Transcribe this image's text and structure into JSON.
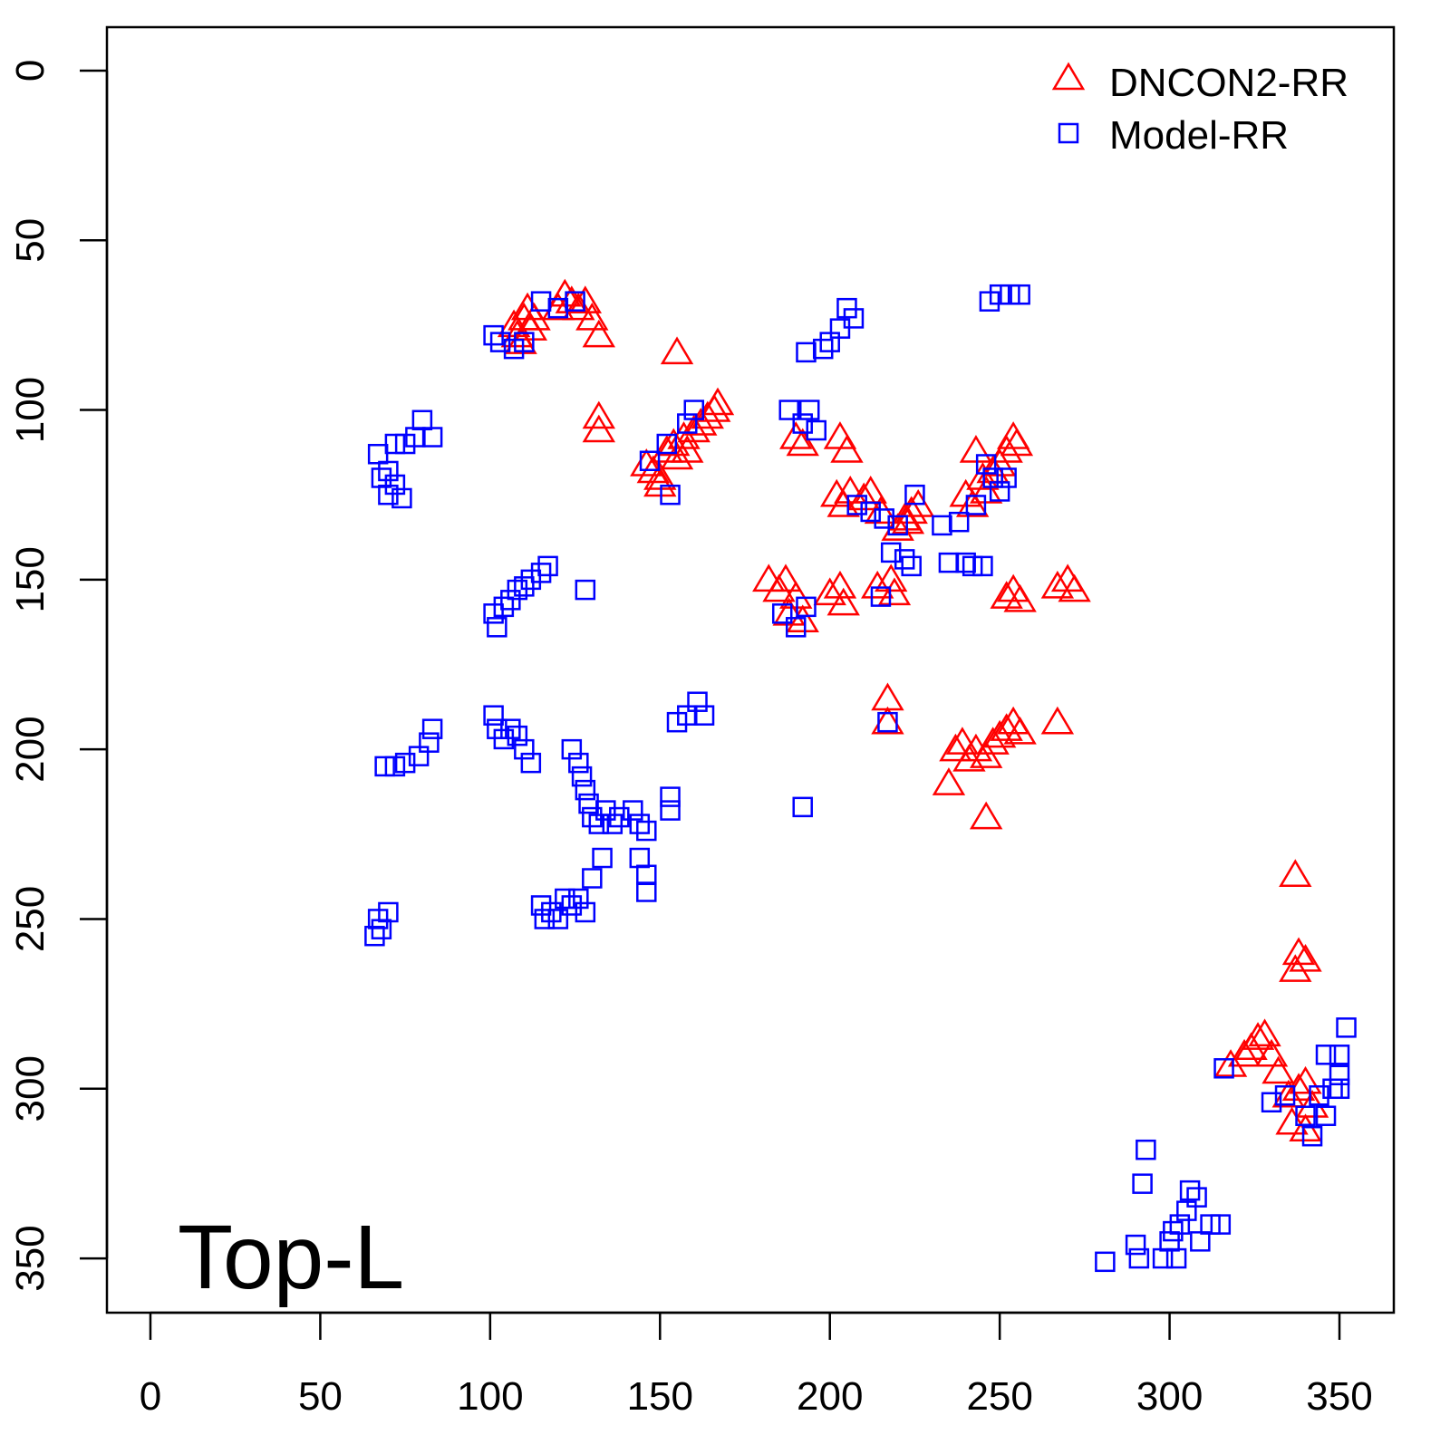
{
  "chart_data": {
    "type": "scatter",
    "title": "",
    "annotation": "Top-L",
    "xlabel": "",
    "ylabel": "",
    "xlim": [
      -12.8,
      366
    ],
    "ylim": [
      -12.8,
      366
    ],
    "y_inverted": true,
    "xticks": [
      0,
      50,
      100,
      150,
      200,
      250,
      300,
      350
    ],
    "yticks": [
      0,
      50,
      100,
      150,
      200,
      250,
      300,
      350
    ],
    "legend_position": "top-right",
    "series": [
      {
        "name": "DNCON2-RR",
        "marker": "triangle",
        "color": "#ff0000",
        "points": [
          [
            107,
            75
          ],
          [
            108,
            78
          ],
          [
            110,
            73
          ],
          [
            111,
            70
          ],
          [
            112,
            76
          ],
          [
            109,
            80
          ],
          [
            113,
            73
          ],
          [
            120,
            70
          ],
          [
            122,
            66
          ],
          [
            124,
            68
          ],
          [
            126,
            70
          ],
          [
            128,
            68
          ],
          [
            130,
            73
          ],
          [
            132,
            78
          ],
          [
            155,
            83
          ],
          [
            132,
            102
          ],
          [
            132,
            106
          ],
          [
            146,
            116
          ],
          [
            148,
            118
          ],
          [
            150,
            120
          ],
          [
            150,
            122
          ],
          [
            152,
            112
          ],
          [
            154,
            110
          ],
          [
            155,
            114
          ],
          [
            157,
            108
          ],
          [
            158,
            112
          ],
          [
            160,
            106
          ],
          [
            162,
            104
          ],
          [
            164,
            102
          ],
          [
            166,
            100
          ],
          [
            167,
            98
          ],
          [
            190,
            108
          ],
          [
            192,
            110
          ],
          [
            203,
            108
          ],
          [
            205,
            112
          ],
          [
            202,
            125
          ],
          [
            204,
            128
          ],
          [
            206,
            124
          ],
          [
            210,
            126
          ],
          [
            212,
            124
          ],
          [
            215,
            130
          ],
          [
            220,
            135
          ],
          [
            222,
            132
          ],
          [
            223,
            133
          ],
          [
            224,
            130
          ],
          [
            226,
            128
          ],
          [
            240,
            125
          ],
          [
            242,
            128
          ],
          [
            243,
            112
          ],
          [
            245,
            120
          ],
          [
            246,
            124
          ],
          [
            248,
            118
          ],
          [
            250,
            116
          ],
          [
            252,
            112
          ],
          [
            254,
            108
          ],
          [
            255,
            110
          ],
          [
            182,
            150
          ],
          [
            185,
            153
          ],
          [
            187,
            150
          ],
          [
            190,
            155
          ],
          [
            188,
            160
          ],
          [
            192,
            162
          ],
          [
            200,
            154
          ],
          [
            203,
            152
          ],
          [
            204,
            157
          ],
          [
            214,
            152
          ],
          [
            218,
            150
          ],
          [
            219,
            154
          ],
          [
            252,
            155
          ],
          [
            254,
            153
          ],
          [
            256,
            156
          ],
          [
            267,
            152
          ],
          [
            270,
            150
          ],
          [
            272,
            153
          ],
          [
            217,
            185
          ],
          [
            217,
            192
          ],
          [
            235,
            210
          ],
          [
            237,
            200
          ],
          [
            239,
            198
          ],
          [
            241,
            203
          ],
          [
            243,
            200
          ],
          [
            246,
            202
          ],
          [
            248,
            198
          ],
          [
            250,
            196
          ],
          [
            252,
            194
          ],
          [
            254,
            192
          ],
          [
            256,
            195
          ],
          [
            267,
            192
          ],
          [
            246,
            220
          ],
          [
            337,
            237
          ],
          [
            338,
            260
          ],
          [
            340,
            262
          ],
          [
            337,
            265
          ],
          [
            318,
            293
          ],
          [
            322,
            290
          ],
          [
            324,
            288
          ],
          [
            326,
            285
          ],
          [
            328,
            284
          ],
          [
            330,
            290
          ],
          [
            332,
            295
          ],
          [
            335,
            302
          ],
          [
            338,
            300
          ],
          [
            340,
            298
          ],
          [
            342,
            305
          ],
          [
            336,
            310
          ],
          [
            340,
            312
          ]
        ]
      },
      {
        "name": "Model-RR",
        "marker": "square",
        "color": "#0000ff",
        "points": [
          [
            67,
            113
          ],
          [
            68,
            120
          ],
          [
            70,
            125
          ],
          [
            72,
            122
          ],
          [
            74,
            126
          ],
          [
            72,
            110
          ],
          [
            75,
            110
          ],
          [
            78,
            108
          ],
          [
            80,
            103
          ],
          [
            83,
            108
          ],
          [
            70,
            118
          ],
          [
            101,
            78
          ],
          [
            103,
            80
          ],
          [
            107,
            82
          ],
          [
            110,
            80
          ],
          [
            115,
            68
          ],
          [
            120,
            70
          ],
          [
            125,
            68
          ],
          [
            101,
            160
          ],
          [
            102,
            164
          ],
          [
            104,
            158
          ],
          [
            106,
            156
          ],
          [
            108,
            153
          ],
          [
            110,
            152
          ],
          [
            112,
            150
          ],
          [
            115,
            148
          ],
          [
            117,
            146
          ],
          [
            128,
            153
          ],
          [
            101,
            190
          ],
          [
            102,
            194
          ],
          [
            104,
            197
          ],
          [
            106,
            194
          ],
          [
            108,
            196
          ],
          [
            110,
            200
          ],
          [
            112,
            204
          ],
          [
            69,
            205
          ],
          [
            72,
            205
          ],
          [
            75,
            204
          ],
          [
            79,
            202
          ],
          [
            82,
            198
          ],
          [
            83,
            194
          ],
          [
            67,
            250
          ],
          [
            68,
            253
          ],
          [
            70,
            248
          ],
          [
            66,
            255
          ],
          [
            124,
            200
          ],
          [
            126,
            204
          ],
          [
            127,
            208
          ],
          [
            128,
            212
          ],
          [
            129,
            216
          ],
          [
            130,
            220
          ],
          [
            132,
            222
          ],
          [
            134,
            218
          ],
          [
            136,
            222
          ],
          [
            138,
            220
          ],
          [
            142,
            218
          ],
          [
            144,
            222
          ],
          [
            146,
            224
          ],
          [
            153,
            214
          ],
          [
            153,
            218
          ],
          [
            133,
            232
          ],
          [
            144,
            232
          ],
          [
            146,
            237
          ],
          [
            146,
            242
          ],
          [
            130,
            238
          ],
          [
            115,
            246
          ],
          [
            118,
            248
          ],
          [
            120,
            250
          ],
          [
            122,
            244
          ],
          [
            124,
            246
          ],
          [
            126,
            244
          ],
          [
            128,
            248
          ],
          [
            116,
            250
          ],
          [
            155,
            192
          ],
          [
            158,
            190
          ],
          [
            161,
            186
          ],
          [
            163,
            190
          ],
          [
            188,
            100
          ],
          [
            192,
            104
          ],
          [
            194,
            100
          ],
          [
            196,
            106
          ],
          [
            193,
            83
          ],
          [
            198,
            82
          ],
          [
            200,
            80
          ],
          [
            203,
            76
          ],
          [
            205,
            70
          ],
          [
            207,
            73
          ],
          [
            247,
            68
          ],
          [
            250,
            66
          ],
          [
            253,
            66
          ],
          [
            256,
            66
          ],
          [
            147,
            115
          ],
          [
            153,
            125
          ],
          [
            152,
            110
          ],
          [
            158,
            104
          ],
          [
            160,
            100
          ],
          [
            208,
            128
          ],
          [
            212,
            130
          ],
          [
            216,
            132
          ],
          [
            220,
            134
          ],
          [
            218,
            142
          ],
          [
            222,
            144
          ],
          [
            224,
            146
          ],
          [
            225,
            125
          ],
          [
            233,
            134
          ],
          [
            235,
            145
          ],
          [
            240,
            145
          ],
          [
            242,
            146
          ],
          [
            245,
            146
          ],
          [
            238,
            133
          ],
          [
            243,
            128
          ],
          [
            248,
            120
          ],
          [
            250,
            124
          ],
          [
            252,
            120
          ],
          [
            246,
            116
          ],
          [
            186,
            160
          ],
          [
            190,
            164
          ],
          [
            193,
            158
          ],
          [
            215,
            155
          ],
          [
            217,
            192
          ],
          [
            192,
            217
          ],
          [
            290,
            346
          ],
          [
            291,
            350
          ],
          [
            293,
            318
          ],
          [
            292,
            328
          ],
          [
            281,
            351
          ],
          [
            298,
            350
          ],
          [
            300,
            345
          ],
          [
            301,
            342
          ],
          [
            303,
            340
          ],
          [
            305,
            336
          ],
          [
            306,
            330
          ],
          [
            308,
            332
          ],
          [
            309,
            345
          ],
          [
            312,
            340
          ],
          [
            315,
            340
          ],
          [
            302,
            350
          ],
          [
            316,
            294
          ],
          [
            330,
            304
          ],
          [
            334,
            302
          ],
          [
            340,
            308
          ],
          [
            342,
            314
          ],
          [
            346,
            308
          ],
          [
            348,
            300
          ],
          [
            350,
            296
          ],
          [
            350,
            300
          ],
          [
            352,
            282
          ],
          [
            346,
            290
          ],
          [
            350,
            290
          ],
          [
            344,
            302
          ]
        ]
      }
    ]
  }
}
